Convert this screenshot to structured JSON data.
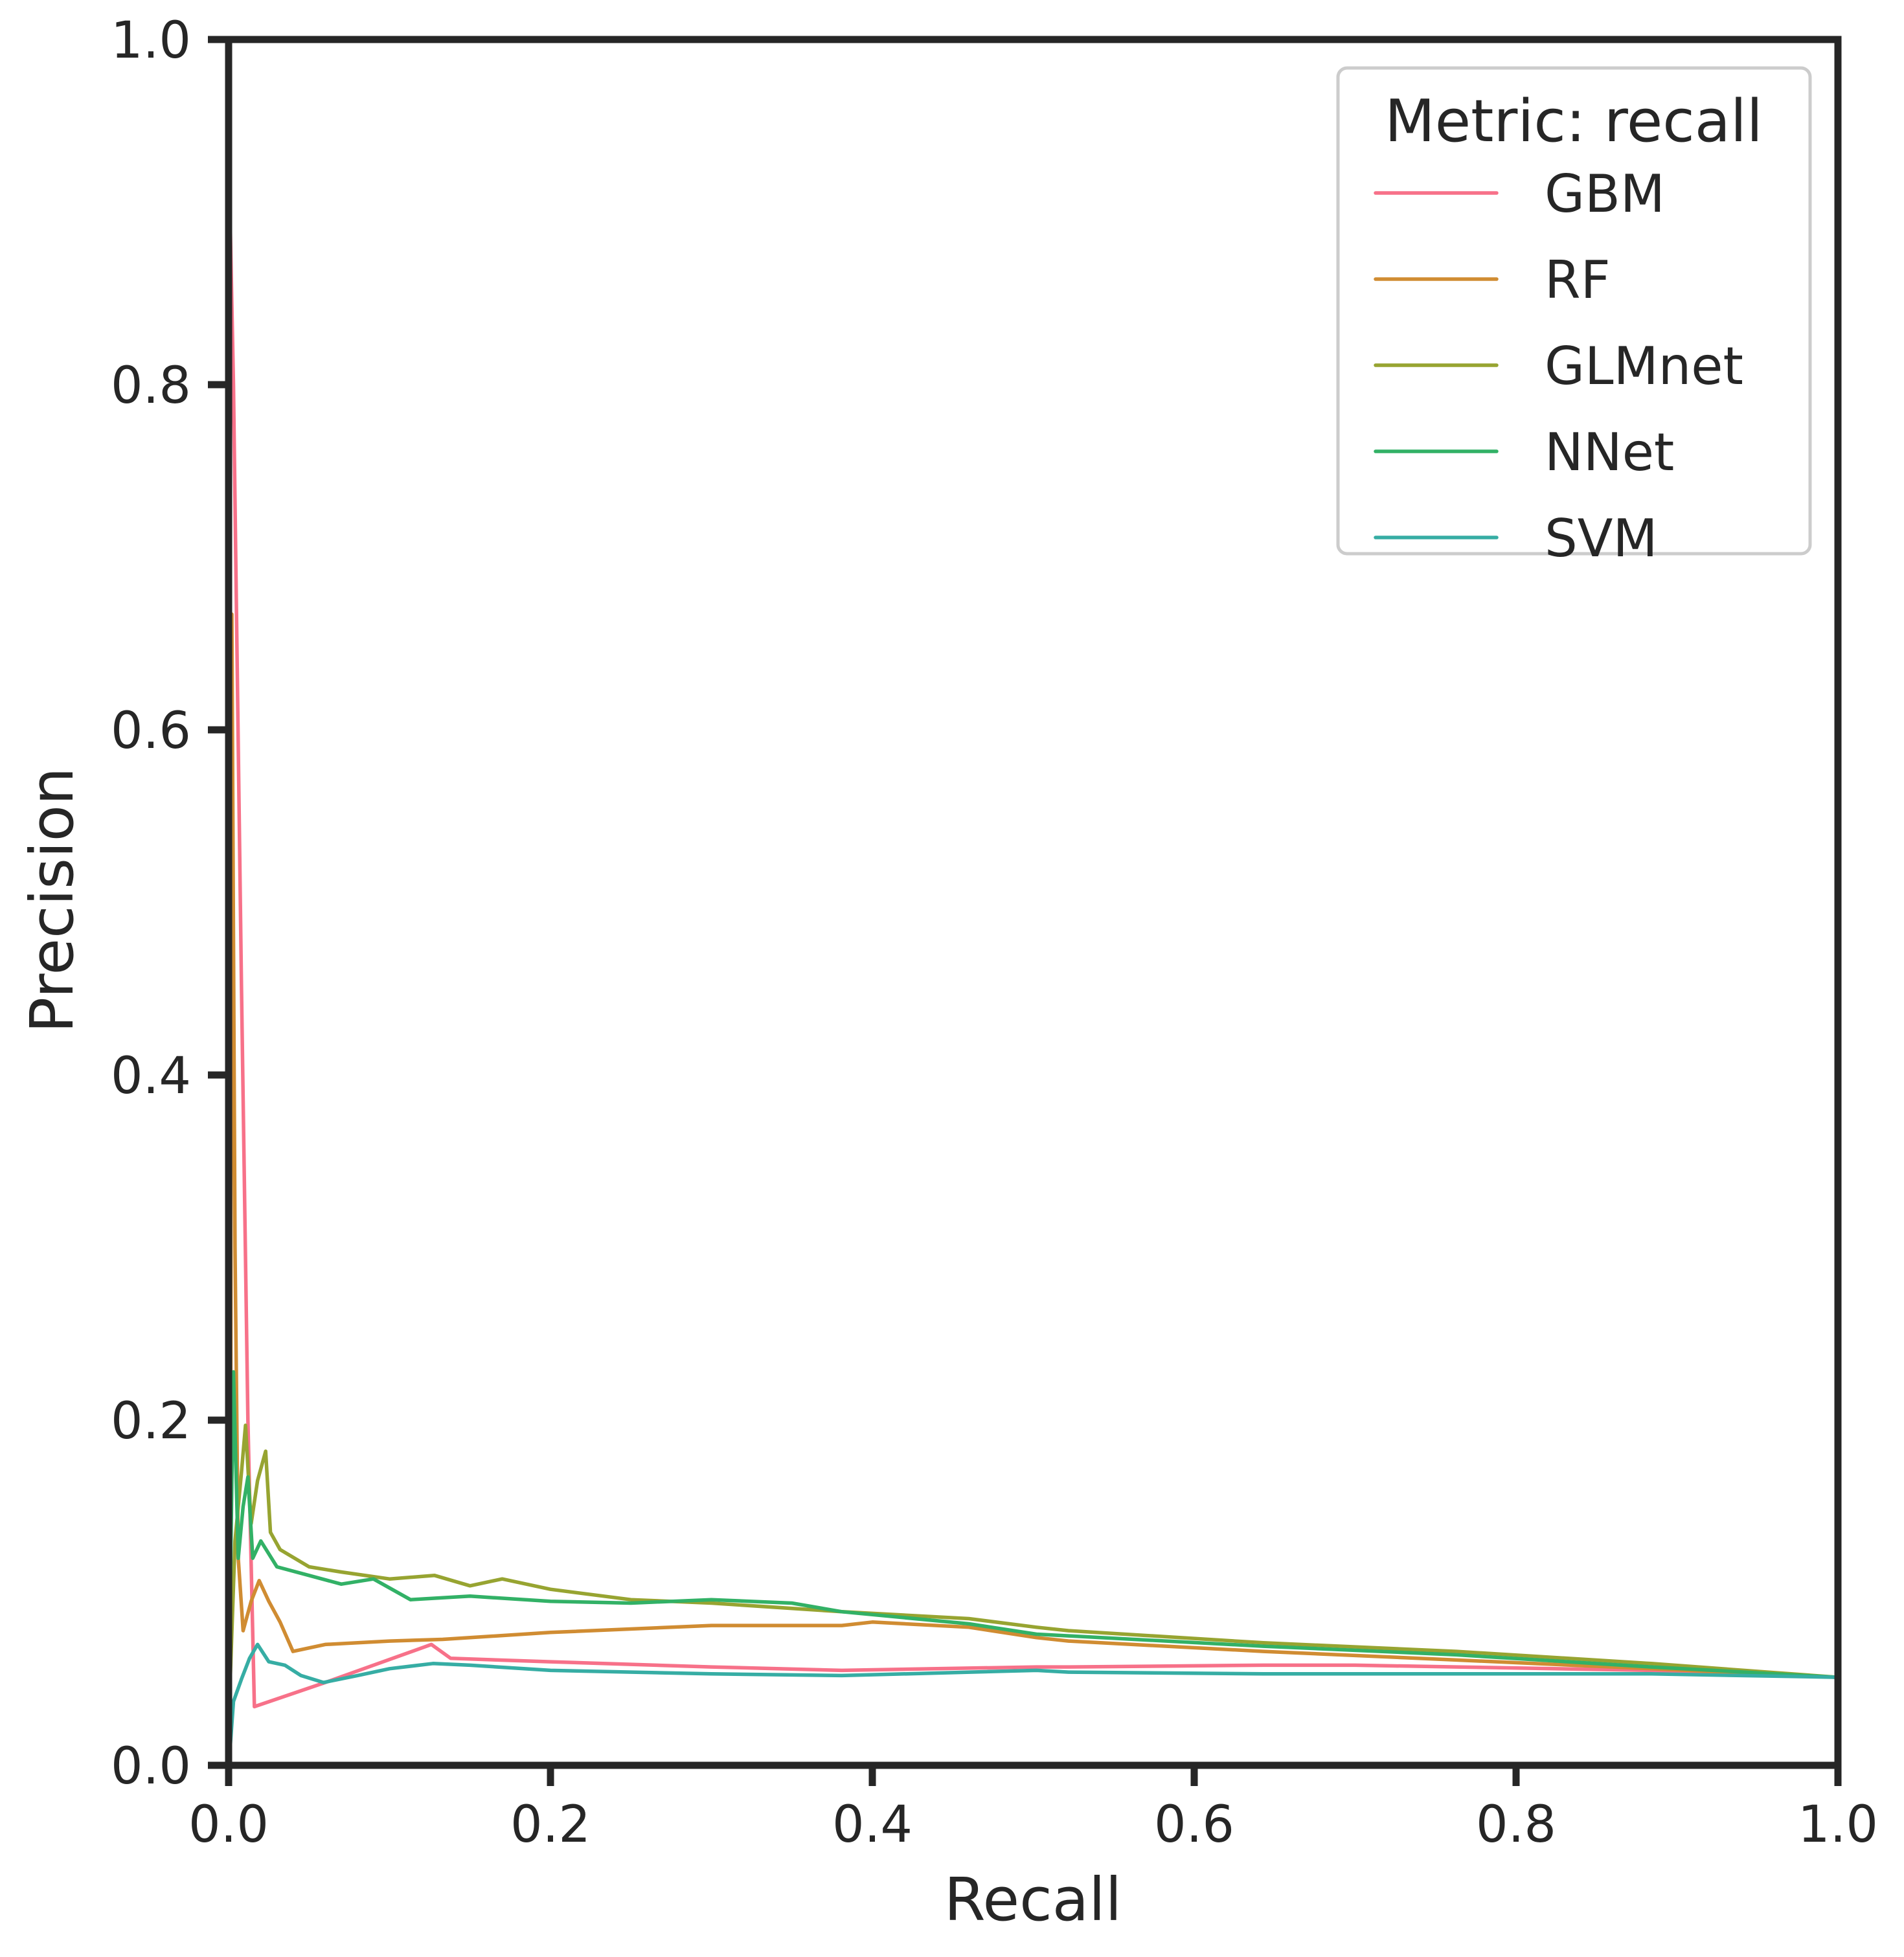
{
  "chart_data": {
    "type": "line",
    "title": "",
    "xlabel": "Recall",
    "ylabel": "Precision",
    "xlim": [
      0.0,
      1.0
    ],
    "ylim": [
      0.0,
      1.0
    ],
    "grid": false,
    "legend_position": "upper right",
    "legend_title": "Metric: recall",
    "x_ticks": [
      "0.0",
      "0.2",
      "0.4",
      "0.6",
      "0.8",
      "1.0"
    ],
    "y_ticks": [
      "0.0",
      "0.2",
      "0.4",
      "0.6",
      "0.8",
      "1.0"
    ],
    "series": [
      {
        "name": "GBM",
        "color": "#f77189",
        "points": [
          [
            0.0,
            0.94
          ],
          [
            0.003,
            0.8
          ],
          [
            0.008,
            0.45
          ],
          [
            0.012,
            0.2
          ],
          [
            0.016,
            0.034
          ],
          [
            0.06,
            0.048
          ],
          [
            0.126,
            0.07
          ],
          [
            0.138,
            0.062
          ],
          [
            0.2,
            0.06
          ],
          [
            0.3,
            0.057
          ],
          [
            0.381,
            0.055
          ],
          [
            0.502,
            0.057
          ],
          [
            0.522,
            0.057
          ],
          [
            0.643,
            0.058
          ],
          [
            0.7,
            0.058
          ],
          [
            0.763,
            0.057
          ],
          [
            0.884,
            0.055
          ],
          [
            1.0,
            0.051
          ]
        ]
      },
      {
        "name": "RF",
        "color": "#d08c32",
        "points": [
          [
            0.001,
            0.0
          ],
          [
            0.002,
            0.667
          ],
          [
            0.004,
            0.3
          ],
          [
            0.006,
            0.12
          ],
          [
            0.009,
            0.078
          ],
          [
            0.014,
            0.095
          ],
          [
            0.019,
            0.107
          ],
          [
            0.025,
            0.095
          ],
          [
            0.032,
            0.083
          ],
          [
            0.04,
            0.066
          ],
          [
            0.06,
            0.07
          ],
          [
            0.1,
            0.072
          ],
          [
            0.133,
            0.073
          ],
          [
            0.2,
            0.077
          ],
          [
            0.3,
            0.081
          ],
          [
            0.381,
            0.081
          ],
          [
            0.4,
            0.083
          ],
          [
            0.46,
            0.08
          ],
          [
            0.502,
            0.074
          ],
          [
            0.522,
            0.072
          ],
          [
            0.643,
            0.066
          ],
          [
            0.763,
            0.061
          ],
          [
            0.884,
            0.056
          ],
          [
            1.0,
            0.051
          ]
        ]
      },
      {
        "name": "GLMnet",
        "color": "#97a431",
        "points": [
          [
            0.001,
            0.05
          ],
          [
            0.004,
            0.13
          ],
          [
            0.008,
            0.17
          ],
          [
            0.0105,
            0.197
          ],
          [
            0.014,
            0.14
          ],
          [
            0.018,
            0.165
          ],
          [
            0.023,
            0.182
          ],
          [
            0.026,
            0.135
          ],
          [
            0.032,
            0.125
          ],
          [
            0.05,
            0.115
          ],
          [
            0.07,
            0.112
          ],
          [
            0.1,
            0.108
          ],
          [
            0.128,
            0.11
          ],
          [
            0.15,
            0.104
          ],
          [
            0.17,
            0.108
          ],
          [
            0.2,
            0.102
          ],
          [
            0.25,
            0.096
          ],
          [
            0.3,
            0.094
          ],
          [
            0.381,
            0.089
          ],
          [
            0.46,
            0.085
          ],
          [
            0.502,
            0.08
          ],
          [
            0.522,
            0.078
          ],
          [
            0.643,
            0.071
          ],
          [
            0.763,
            0.066
          ],
          [
            0.884,
            0.059
          ],
          [
            1.0,
            0.051
          ]
        ]
      },
      {
        "name": "NNet",
        "color": "#32b166",
        "points": [
          [
            0.001,
            0.1
          ],
          [
            0.003,
            0.228
          ],
          [
            0.006,
            0.12
          ],
          [
            0.009,
            0.15
          ],
          [
            0.012,
            0.167
          ],
          [
            0.015,
            0.12
          ],
          [
            0.02,
            0.13
          ],
          [
            0.03,
            0.115
          ],
          [
            0.05,
            0.11
          ],
          [
            0.07,
            0.105
          ],
          [
            0.09,
            0.108
          ],
          [
            0.113,
            0.096
          ],
          [
            0.15,
            0.098
          ],
          [
            0.2,
            0.095
          ],
          [
            0.25,
            0.094
          ],
          [
            0.3,
            0.096
          ],
          [
            0.35,
            0.094
          ],
          [
            0.381,
            0.089
          ],
          [
            0.46,
            0.082
          ],
          [
            0.502,
            0.076
          ],
          [
            0.522,
            0.075
          ],
          [
            0.643,
            0.069
          ],
          [
            0.763,
            0.064
          ],
          [
            0.884,
            0.057
          ],
          [
            1.0,
            0.051
          ]
        ]
      },
      {
        "name": "SVM",
        "color": "#36ada4",
        "points": [
          [
            0.0,
            0.005
          ],
          [
            0.001,
            0.011
          ],
          [
            0.003,
            0.037
          ],
          [
            0.008,
            0.05
          ],
          [
            0.013,
            0.062
          ],
          [
            0.018,
            0.07
          ],
          [
            0.025,
            0.06
          ],
          [
            0.035,
            0.058
          ],
          [
            0.045,
            0.052
          ],
          [
            0.059,
            0.048
          ],
          [
            0.08,
            0.052
          ],
          [
            0.1,
            0.056
          ],
          [
            0.127,
            0.059
          ],
          [
            0.15,
            0.058
          ],
          [
            0.2,
            0.055
          ],
          [
            0.3,
            0.053
          ],
          [
            0.381,
            0.052
          ],
          [
            0.502,
            0.055
          ],
          [
            0.522,
            0.054
          ],
          [
            0.643,
            0.053
          ],
          [
            0.763,
            0.053
          ],
          [
            0.884,
            0.053
          ],
          [
            1.0,
            0.051
          ]
        ]
      }
    ]
  },
  "legend": {
    "title": "Metric: recall",
    "items": [
      {
        "label": "GBM",
        "color": "#f77189"
      },
      {
        "label": "RF",
        "color": "#d08c32"
      },
      {
        "label": "GLMnet",
        "color": "#97a431"
      },
      {
        "label": "NNet",
        "color": "#32b166"
      },
      {
        "label": "SVM",
        "color": "#36ada4"
      }
    ]
  },
  "axes": {
    "x_label": "Recall",
    "y_label": "Precision",
    "x_ticks": [
      "0.0",
      "0.2",
      "0.4",
      "0.6",
      "0.8",
      "1.0"
    ],
    "y_ticks": [
      "0.0",
      "0.2",
      "0.4",
      "0.6",
      "0.8",
      "1.0"
    ]
  }
}
